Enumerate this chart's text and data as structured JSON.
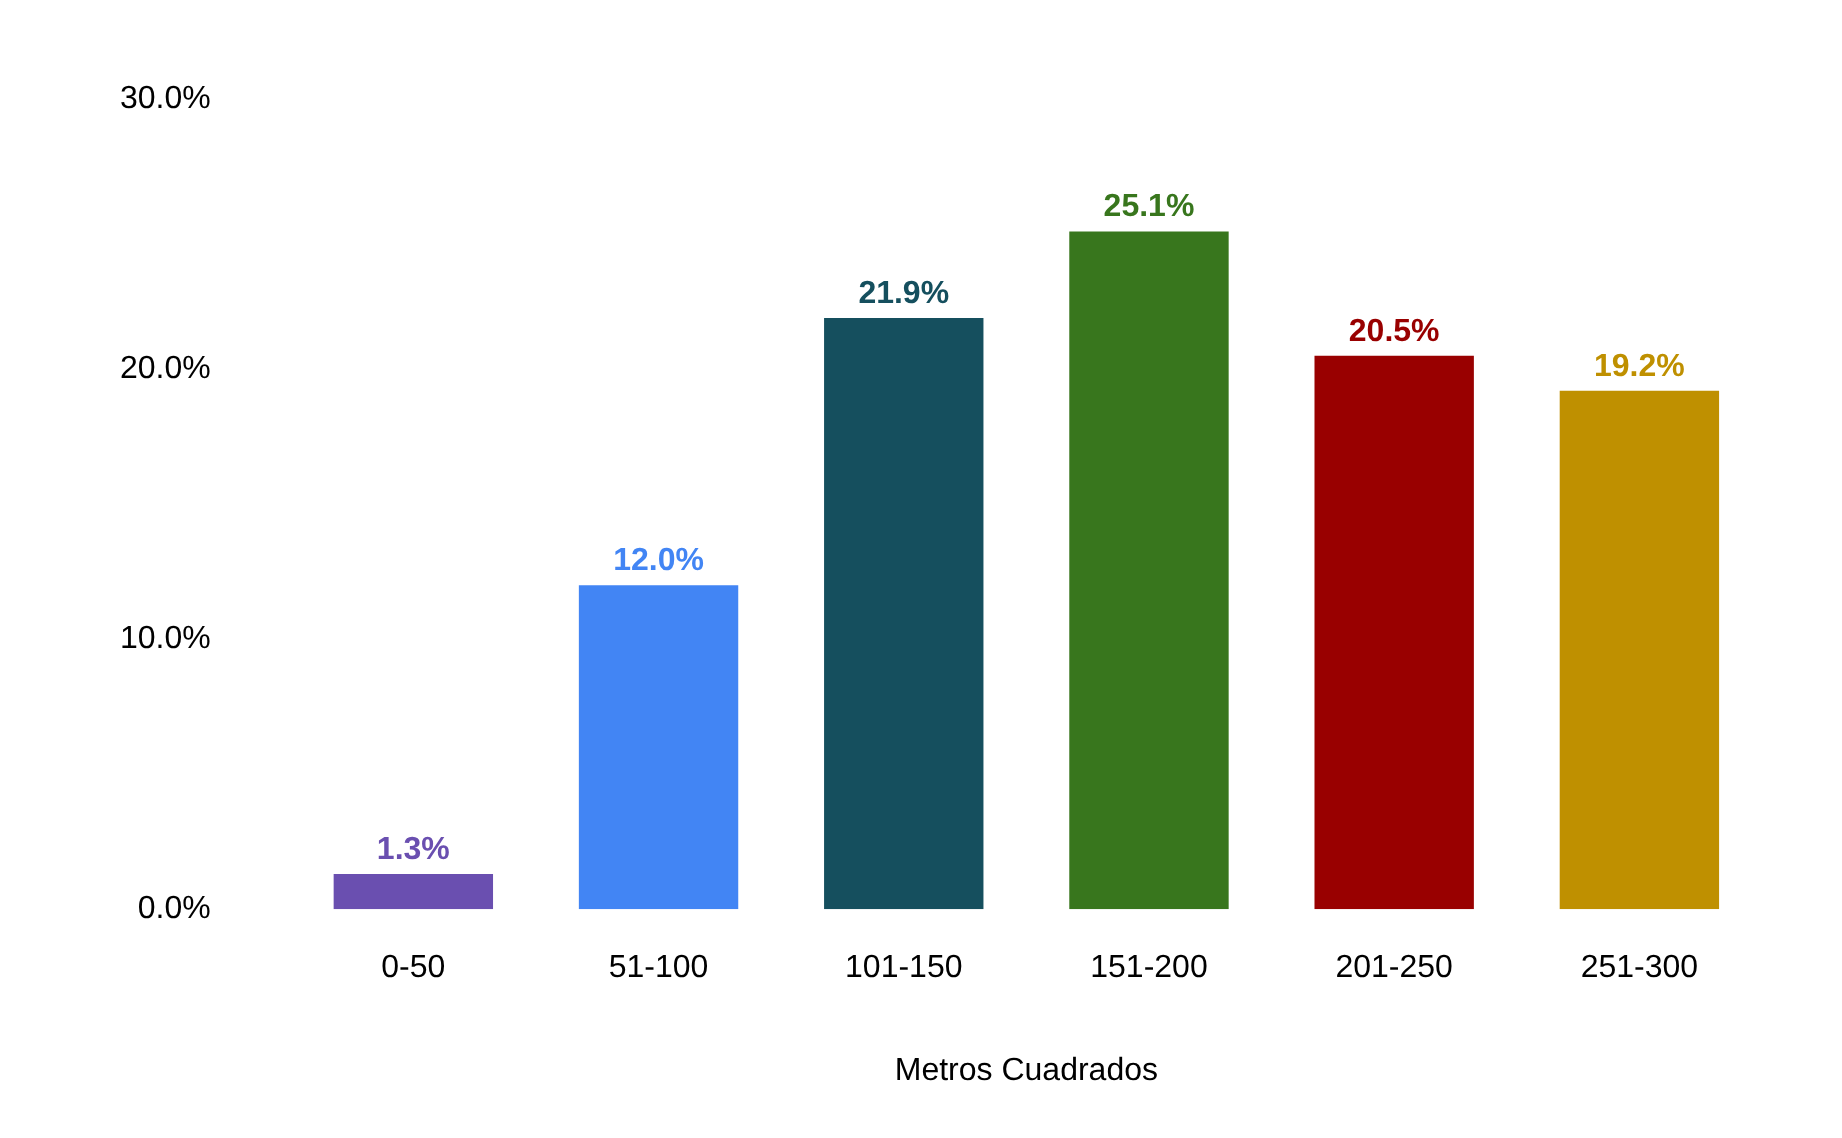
{
  "chart_data": {
    "type": "bar",
    "xlabel": "Metros Cuadrados",
    "categories": [
      "0-50",
      "51-100",
      "101-150",
      "151-200",
      "201-250",
      "251-300"
    ],
    "values": [
      1.3,
      12.0,
      21.9,
      25.1,
      20.5,
      19.2
    ],
    "colors": [
      "#6a4fb0",
      "#4285f4",
      "#154f5e",
      "#38761d",
      "#990000",
      "#bf9000"
    ],
    "value_labels": [
      "1.3%",
      "12.0%",
      "21.9%",
      "25.1%",
      "20.5%",
      "19.2%"
    ],
    "ylim": [
      0,
      30
    ],
    "yticks": [
      {
        "value": 0,
        "label": "0.0%"
      },
      {
        "value": 10,
        "label": "10.0%"
      },
      {
        "value": 20,
        "label": "20.0%"
      },
      {
        "value": 30,
        "label": "30.0%"
      }
    ],
    "grid": false
  }
}
